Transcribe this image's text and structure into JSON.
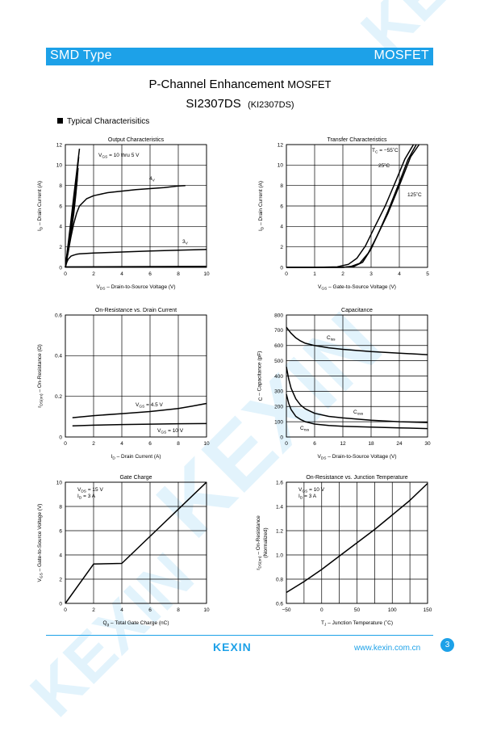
{
  "header": {
    "left_label": "SMD Type",
    "right_label": "MOSFET",
    "accent_color": "#1da1e8"
  },
  "title": {
    "line1_main": "P-Channel Enhancement",
    "line1_suffix": "MOSFET",
    "part_number": "SI2307DS",
    "alt_part": "(KI2307DS)"
  },
  "section_label": "Typical  Characterisitics",
  "watermark": {
    "text": "KEXIN"
  },
  "footer": {
    "logo": "KEXIN",
    "website": "www.kexin.com.cn",
    "page_number": "3"
  },
  "chart_data": [
    {
      "type": "line",
      "title": "Output Characteristics",
      "xlabel_main": "V",
      "xlabel_sub": "DS",
      "xlabel_rest": "  –  Drain-to-Source Voltage (V)",
      "ylabel": "I D  –  Drain Current (A)",
      "xlim": [
        0,
        10
      ],
      "ylim": [
        0,
        12
      ],
      "xticks": [
        "0",
        "2",
        "4",
        "6",
        "8",
        "10"
      ],
      "yticks": [
        "0",
        "2",
        "4",
        "6",
        "8",
        "10",
        "12"
      ],
      "series": [
        {
          "name": "V GS = 10 thru 5 V",
          "x": [
            0,
            0.2,
            0.4,
            0.6,
            0.8,
            1.0
          ],
          "y": [
            0,
            2.3,
            4.6,
            7,
            9.3,
            11.6
          ]
        },
        {
          "name": "",
          "x": [
            0,
            0.2,
            0.4,
            0.6,
            0.8,
            0.95
          ],
          "y": [
            0,
            2.1,
            4.2,
            6.5,
            8.8,
            10.8
          ]
        },
        {
          "name": "",
          "x": [
            0,
            0.2,
            0.4,
            0.6,
            0.8,
            0.9
          ],
          "y": [
            0,
            1.8,
            3.8,
            6,
            8,
            9.7
          ]
        },
        {
          "name": "",
          "x": [
            0,
            0.2,
            0.4,
            0.6,
            0.75,
            0.85
          ],
          "y": [
            0,
            1.5,
            3.3,
            5.3,
            7.2,
            8.8
          ]
        },
        {
          "name": "4 V",
          "x": [
            0,
            0.2,
            0.4,
            0.6,
            0.8,
            1,
            1.5,
            2,
            3,
            4,
            5,
            6,
            7,
            8,
            8.5
          ],
          "y": [
            0,
            1.5,
            3,
            4.3,
            5.3,
            6,
            6.7,
            7,
            7.3,
            7.45,
            7.6,
            7.7,
            7.8,
            7.95,
            8.0
          ]
        },
        {
          "name": "3 V",
          "x": [
            0,
            0.1,
            0.2,
            0.4,
            0.6,
            0.8,
            1,
            2,
            4,
            6,
            8,
            10
          ],
          "y": [
            0,
            0.5,
            0.8,
            1.1,
            1.2,
            1.28,
            1.32,
            1.4,
            1.5,
            1.6,
            1.68,
            1.75
          ]
        },
        {
          "name": "",
          "x": [
            0,
            10
          ],
          "y": [
            0.05,
            0.1
          ]
        }
      ]
    },
    {
      "type": "line",
      "title": "Transfer Characteristics",
      "xlabel_main": "V",
      "xlabel_sub": "GS",
      "xlabel_rest": "  –  Gate-to-Source Voltage (V)",
      "ylabel": "I D  –  Drain Current (A)",
      "xlim": [
        0,
        5
      ],
      "ylim": [
        0,
        12
      ],
      "xticks": [
        "0",
        "1",
        "2",
        "3",
        "4",
        "5"
      ],
      "yticks": [
        "0",
        "2",
        "4",
        "6",
        "8",
        "10",
        "12"
      ],
      "series": [
        {
          "name": "T C = −55˚C",
          "x": [
            0,
            1,
            2,
            2.3,
            2.6,
            2.9,
            3.2,
            3.6,
            4,
            4.4,
            4.7
          ],
          "y": [
            0,
            0,
            0,
            0.1,
            0.4,
            1.4,
            3.0,
            5.3,
            8,
            10.8,
            12
          ]
        },
        {
          "name": "25˚C",
          "x": [
            0,
            1,
            2,
            2.4,
            2.7,
            3.0,
            3.3,
            3.6,
            4,
            4.3,
            4.6
          ],
          "y": [
            0,
            0,
            0,
            0.1,
            0.5,
            1.8,
            3.6,
            5.5,
            8.3,
            10.5,
            12
          ]
        },
        {
          "name": "125˚C",
          "x": [
            0,
            1,
            1.8,
            2.2,
            2.5,
            2.8,
            3.1,
            3.5,
            3.9,
            4.2,
            4.5
          ],
          "y": [
            0,
            0,
            0.05,
            0.3,
            0.9,
            2.1,
            3.8,
            6,
            8.6,
            10.6,
            12
          ]
        }
      ]
    },
    {
      "type": "line",
      "title": "On-Resistance vs. Drain Current",
      "xlabel_main": "I",
      "xlabel_sub": "D",
      "xlabel_rest": "  –  Drain Current (A)",
      "ylabel": "r DS(on)  –  On-Resistance (Ω)",
      "xlim": [
        0,
        10
      ],
      "ylim": [
        0,
        0.6
      ],
      "xticks": [
        "0",
        "2",
        "4",
        "6",
        "8",
        "10"
      ],
      "yticks": [
        "0",
        "0.2",
        "0.4",
        "0.6"
      ],
      "series": [
        {
          "name": "V GS = 4.5 V",
          "x": [
            0.5,
            2,
            4,
            6,
            8,
            9,
            10
          ],
          "y": [
            0.095,
            0.105,
            0.115,
            0.125,
            0.14,
            0.152,
            0.165
          ]
        },
        {
          "name": "V GS = 10 V",
          "x": [
            0.5,
            2,
            4,
            6,
            8,
            10
          ],
          "y": [
            0.055,
            0.058,
            0.061,
            0.063,
            0.065,
            0.066
          ]
        }
      ]
    },
    {
      "type": "line",
      "title": "Capacitance",
      "xlabel_main": "V",
      "xlabel_sub": "DS",
      "xlabel_rest": "  –  Drain-to-Source Voltage (V)",
      "ylabel": "C  –  Capacitance (pF)",
      "xlim": [
        0,
        30
      ],
      "ylim": [
        0,
        800
      ],
      "xticks": [
        "0",
        "6",
        "12",
        "18",
        "24",
        "30"
      ],
      "yticks": [
        "0",
        "100",
        "200",
        "300",
        "400",
        "500",
        "600",
        "700",
        "800"
      ],
      "series": [
        {
          "name": "C iss",
          "x": [
            0,
            0.5,
            1,
            2,
            3,
            4,
            6,
            9,
            12,
            18,
            24,
            30
          ],
          "y": [
            720,
            700,
            680,
            650,
            630,
            615,
            600,
            585,
            575,
            560,
            550,
            540
          ]
        },
        {
          "name": "C oss",
          "x": [
            0,
            0.5,
            1,
            2,
            3,
            4,
            6,
            9,
            12,
            18,
            24,
            30
          ],
          "y": [
            460,
            380,
            320,
            250,
            210,
            185,
            155,
            135,
            125,
            110,
            100,
            95
          ]
        },
        {
          "name": "C rss",
          "x": [
            0,
            0.5,
            1,
            2,
            3,
            4,
            6,
            9,
            12,
            18,
            24,
            30
          ],
          "y": [
            280,
            220,
            180,
            135,
            115,
            100,
            85,
            75,
            70,
            65,
            60,
            55
          ]
        }
      ]
    },
    {
      "type": "line",
      "title": "Gate Charge",
      "xlabel_main": "Q",
      "xlabel_sub": "g",
      "xlabel_rest": "  –  Total Gate Charge (nC)",
      "ylabel": "V GS  –  Gate-to-Source Voltage (V)",
      "xlim": [
        0,
        10
      ],
      "ylim": [
        0,
        10
      ],
      "xticks": [
        "0",
        "2",
        "4",
        "6",
        "8",
        "10"
      ],
      "yticks": [
        "0",
        "2",
        "4",
        "6",
        "8",
        "10"
      ],
      "annotation": [
        "V DS = 15 V",
        "I D = 3 A"
      ],
      "series": [
        {
          "name": "",
          "x": [
            0,
            2,
            4,
            10
          ],
          "y": [
            0,
            3.25,
            3.3,
            10
          ]
        }
      ]
    },
    {
      "type": "line",
      "title": "On-Resistance vs. Junction Temperature",
      "xlabel_main": "T",
      "xlabel_sub": "J",
      "xlabel_rest": "  –  Junction Temperature (˚C)",
      "ylabel": "r DS(on)  –  On-Resistance (Normalized)",
      "xlim": [
        -50,
        150
      ],
      "ylim": [
        0.6,
        1.6
      ],
      "xticks": [
        "−50",
        "0",
        "50",
        "100",
        "150"
      ],
      "yticks": [
        "0.6",
        "0.8",
        "1.0",
        "1.2",
        "1.4",
        "1.6"
      ],
      "annotation": [
        "V GS = 10 V",
        "I D = 3 A"
      ],
      "series": [
        {
          "name": "",
          "x": [
            -50,
            -25,
            0,
            25,
            50,
            75,
            100,
            125,
            150
          ],
          "y": [
            0.69,
            0.78,
            0.88,
            0.99,
            1.1,
            1.21,
            1.33,
            1.45,
            1.59
          ]
        }
      ]
    }
  ]
}
